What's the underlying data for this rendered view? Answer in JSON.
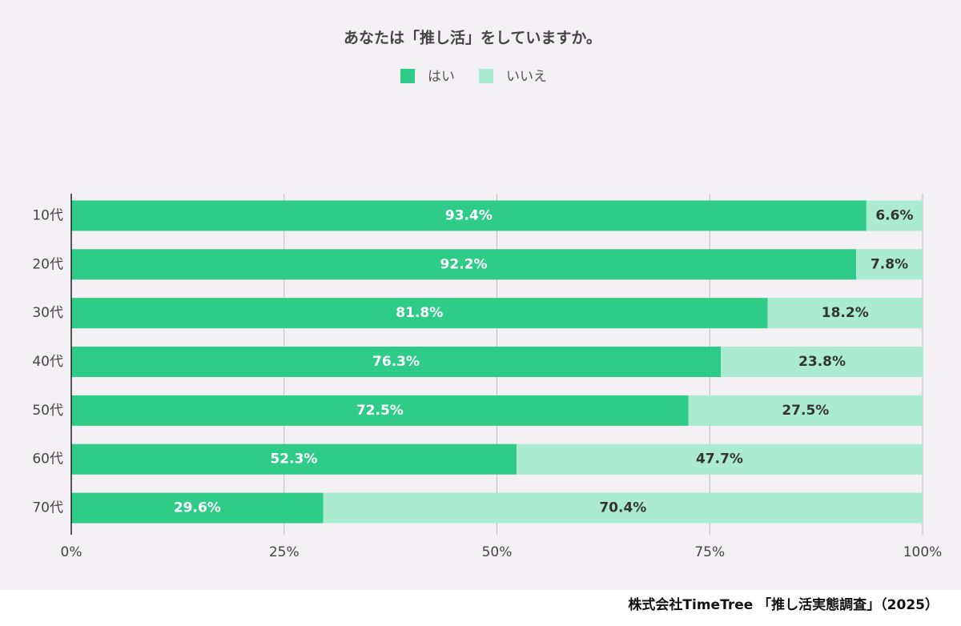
{
  "chart_data": {
    "type": "stacked-bar-horizontal",
    "title": "あなたは「推し活」をしていますか。",
    "categories": [
      "10代",
      "20代",
      "30代",
      "40代",
      "50代",
      "60代",
      "70代"
    ],
    "series": [
      {
        "name": "はい",
        "color": "#2ecc87",
        "values": [
          93.4,
          92.2,
          81.8,
          76.3,
          72.5,
          52.3,
          29.6
        ],
        "value_labels": [
          "93.4%",
          "92.2%",
          "81.8%",
          "76.3%",
          "72.5%",
          "52.3%",
          "29.6%"
        ]
      },
      {
        "name": "いいえ",
        "color": "#abebd2",
        "values": [
          6.6,
          7.8,
          18.2,
          23.8,
          27.5,
          47.7,
          70.4
        ],
        "value_labels": [
          "6.6%",
          "7.8%",
          "18.2%",
          "23.8%",
          "27.5%",
          "47.7%",
          "70.4%"
        ]
      }
    ],
    "xlim": [
      0,
      100
    ],
    "xticks": [
      {
        "value": 0,
        "label": "0%"
      },
      {
        "value": 25,
        "label": "25%"
      },
      {
        "value": 50,
        "label": "50%"
      },
      {
        "value": 75,
        "label": "75%"
      },
      {
        "value": 100,
        "label": "100%"
      }
    ],
    "grid": true,
    "legend": "top",
    "source": "株式会社TimeTree 「推し活実態調査」（2025）"
  }
}
